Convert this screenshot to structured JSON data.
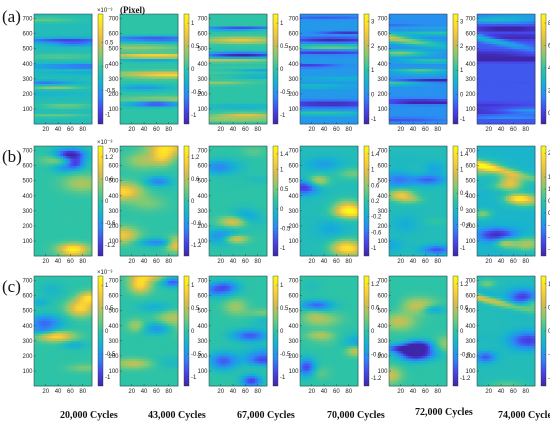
{
  "figure": {
    "unit_label": "(Pixel)",
    "row_labels": [
      "(a)",
      "(b)",
      "(c)"
    ],
    "column_labels": [
      "20,000 Cycles",
      "43,000 Cycles",
      "67,000 Cycles",
      "70,000 Cycles",
      "72,000 Cycles",
      "74,000 Cycles"
    ]
  },
  "colormap": [
    "#3e26a8",
    "#4746eb",
    "#2e87f7",
    "#15b1d4",
    "#2dc3a7",
    "#82ca73",
    "#d6bd4d",
    "#fdd531",
    "#f9fb15"
  ],
  "chart_data": {
    "type": "heatmap",
    "x_ticks": [
      20,
      40,
      60,
      80
    ],
    "y_ticks": [
      100,
      200,
      300,
      400,
      500,
      600,
      700
    ],
    "xlim": [
      1,
      95
    ],
    "ylim": [
      1,
      730
    ],
    "panels": [
      {
        "row": 0,
        "col": 0,
        "colorbar": {
          "ticks": [
            "0.5",
            "0",
            "-0.5",
            "-1"
          ],
          "exponent": "×10⁻³",
          "range": [
            -1.2,
            1.1
          ]
        },
        "field_mean": 0.45,
        "bands": []
      },
      {
        "row": 0,
        "col": 1,
        "colorbar": {
          "ticks": [
            "1",
            "0.5",
            "0",
            "-0.5",
            "-1"
          ],
          "range": [
            -1.2,
            1.2
          ]
        },
        "field_mean": 0.5,
        "bands": []
      },
      {
        "row": 0,
        "col": 2,
        "colorbar": {
          "ticks": [
            "1",
            "0.5",
            "0",
            "-0.5",
            "-1"
          ],
          "range": [
            -1.2,
            1.2
          ]
        },
        "field_mean": 0.5,
        "bands": []
      },
      {
        "row": 0,
        "col": 3,
        "colorbar": {
          "ticks": [
            "3",
            "2",
            "1",
            "0",
            "-1"
          ],
          "range": [
            -1.2,
            3.3
          ]
        },
        "field_mean": 0.3,
        "bands": []
      },
      {
        "row": 0,
        "col": 4,
        "colorbar": {
          "ticks": [
            "3",
            "2",
            "1",
            "0",
            "-1"
          ],
          "range": [
            -1.2,
            3.3
          ]
        },
        "field_mean": 0.28,
        "bands": [
          {
            "y": 560,
            "slope": -0.6,
            "width": 25,
            "amp": 0.5
          }
        ]
      },
      {
        "row": 0,
        "col": 5,
        "colorbar": {
          "ticks": [
            "8",
            "6",
            "4",
            "2",
            "0"
          ],
          "range": [
            -1.0,
            8.8
          ]
        },
        "field_mean": 0.16,
        "bands": [
          {
            "y": 560,
            "slope": -0.9,
            "width": 22,
            "amp": 0.35
          }
        ]
      },
      {
        "row": 1,
        "col": 0,
        "colorbar": {
          "ticks": [
            "1.2",
            "0.6",
            "0",
            "-0.6",
            "-1.2"
          ],
          "exponent": "×10⁻³",
          "range": [
            -1.5,
            1.5
          ]
        },
        "field_mean": 0.5,
        "bands": []
      },
      {
        "row": 1,
        "col": 1,
        "colorbar": {
          "ticks": [
            "1.2",
            "0.6",
            "0",
            "-0.6",
            "-1.2"
          ],
          "range": [
            -1.5,
            1.5
          ]
        },
        "field_mean": 0.5,
        "bands": []
      },
      {
        "row": 1,
        "col": 2,
        "colorbar": {
          "ticks": [
            "1.4",
            "1",
            "0.5",
            "0",
            "-0.5",
            "-1"
          ],
          "range": [
            -1.2,
            1.6
          ]
        },
        "field_mean": 0.5,
        "bands": []
      },
      {
        "row": 1,
        "col": 3,
        "colorbar": {
          "ticks": [
            "1.4",
            "1",
            "0.6",
            "0.2",
            "-0.2",
            "-0.6",
            "-1"
          ],
          "range": [
            -1.2,
            1.6
          ]
        },
        "field_mean": 0.45,
        "bands": []
      },
      {
        "row": 1,
        "col": 4,
        "colorbar": {
          "ticks": [
            "1.4",
            "1",
            "0.4",
            "0",
            "-0.4",
            "-1"
          ],
          "range": [
            -1.2,
            1.6
          ]
        },
        "field_mean": 0.45,
        "bands": []
      },
      {
        "row": 1,
        "col": 5,
        "colorbar": {
          "ticks": [
            "2.5",
            "1.5",
            "1",
            "0.5",
            "0",
            "-0.5",
            "-1",
            "-1.5"
          ],
          "range": [
            -1.8,
            2.8
          ]
        },
        "field_mean": 0.4,
        "bands": [
          {
            "y": 590,
            "slope": -1.0,
            "width": 25,
            "amp": 0.45
          }
        ]
      },
      {
        "row": 2,
        "col": 0,
        "colorbar": {
          "ticks": [
            "1",
            "0.5",
            "0",
            "-0.5",
            "-1"
          ],
          "exponent": "×10⁻³",
          "range": [
            -1.2,
            1.2
          ]
        },
        "field_mean": 0.5,
        "bands": []
      },
      {
        "row": 2,
        "col": 1,
        "colorbar": {
          "ticks": [
            "1",
            "0.5",
            "0",
            "-0.5",
            "-1"
          ],
          "range": [
            -1.2,
            1.2
          ]
        },
        "field_mean": 0.5,
        "bands": []
      },
      {
        "row": 2,
        "col": 2,
        "colorbar": {
          "ticks": [
            "1",
            "0.5",
            "0",
            "-0.5",
            "-1"
          ],
          "range": [
            -1.2,
            1.2
          ]
        },
        "field_mean": 0.5,
        "bands": []
      },
      {
        "row": 2,
        "col": 3,
        "colorbar": {
          "ticks": [
            "1.2",
            "0.6",
            "0",
            "-0.6",
            "-1.2"
          ],
          "range": [
            -1.4,
            1.4
          ]
        },
        "field_mean": 0.5,
        "bands": []
      },
      {
        "row": 2,
        "col": 4,
        "colorbar": {
          "ticks": [
            "1.2",
            "0.6",
            "0",
            "-0.6",
            "-1.2"
          ],
          "range": [
            -1.4,
            1.4
          ]
        },
        "field_mean": 0.5,
        "bands": []
      },
      {
        "row": 2,
        "col": 5,
        "colorbar": {
          "ticks": [
            "1.2",
            "0.6",
            "0",
            "-0.6",
            "-1.2"
          ],
          "range": [
            -1.4,
            1.4
          ]
        },
        "field_mean": 0.45,
        "bands": [
          {
            "y": 570,
            "slope": -1.0,
            "width": 25,
            "amp": 0.45
          }
        ]
      }
    ]
  }
}
